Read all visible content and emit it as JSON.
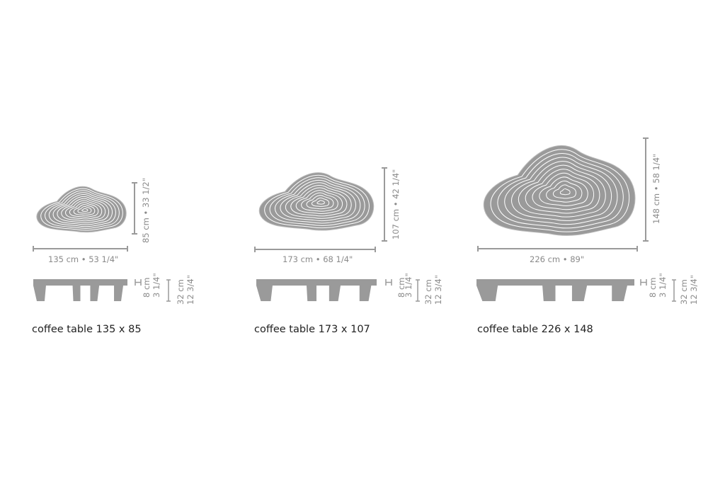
{
  "colors": {
    "table": "#9a9a9a",
    "dimension": "#9a9a9a",
    "contour": "#ffffff",
    "caption": "#222222"
  },
  "items": [
    {
      "caption": "coffee table 135 x 85",
      "width_label": "135 cm • 53 1/4\"",
      "depth_label": "85 cm • 33 1/2\"",
      "top_height_cm": "8 cm",
      "top_height_in": "3 1/4\"",
      "height_cm": "32 cm",
      "height_in": "12 3/4\""
    },
    {
      "caption": "coffee table 173 x 107",
      "width_label": "173 cm • 68 1/4\"",
      "depth_label": "107 cm • 42 1/4\"",
      "top_height_cm": "8 cm",
      "top_height_in": "3 1/4\"",
      "height_cm": "32 cm",
      "height_in": "12 3/4\""
    },
    {
      "caption": "coffee table 226 x 148",
      "width_label": "226 cm • 89\"",
      "depth_label": "148 cm • 58 1/4\"",
      "top_height_cm": "8 cm",
      "top_height_in": "3 1/4\"",
      "height_cm": "32 cm",
      "height_in": "12 3/4\""
    }
  ]
}
